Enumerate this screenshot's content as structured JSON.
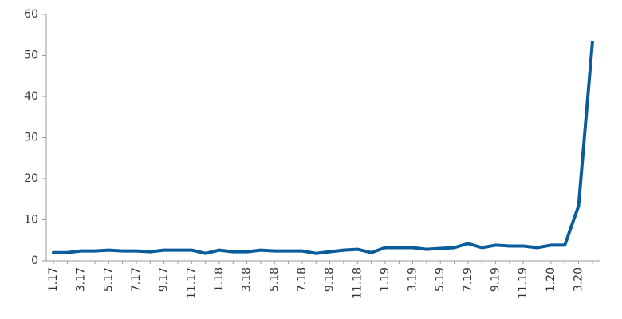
{
  "chart_data": {
    "type": "line",
    "categories": [
      "1.17",
      null,
      "3.17",
      null,
      "5.17",
      null,
      "7.17",
      null,
      "9.17",
      null,
      "11.17",
      null,
      "1.18",
      null,
      "3.18",
      null,
      "5.18",
      null,
      "7.18",
      null,
      "9.18",
      null,
      "11.18",
      null,
      "1.19",
      null,
      "3.19",
      null,
      "5.19",
      null,
      "7.19",
      null,
      "9.19",
      null,
      "11.19",
      null,
      "1.20",
      null,
      "3.20",
      null
    ],
    "series": [
      {
        "color": "#0b5c9b",
        "values": [
          2.0,
          2.0,
          2.4,
          2.4,
          2.6,
          2.4,
          2.4,
          2.2,
          2.6,
          2.6,
          2.6,
          1.8,
          2.6,
          2.2,
          2.2,
          2.6,
          2.4,
          2.4,
          2.4,
          1.8,
          2.2,
          2.6,
          2.8,
          2.0,
          3.2,
          3.2,
          3.2,
          2.8,
          3.0,
          3.2,
          4.2,
          3.2,
          3.8,
          3.6,
          3.6,
          3.2,
          3.8,
          3.8,
          13.4,
          53.2
        ]
      }
    ],
    "ylim": [
      0,
      60
    ],
    "yticks": [
      0,
      10,
      20,
      30,
      40,
      50,
      60
    ],
    "grid": false
  }
}
